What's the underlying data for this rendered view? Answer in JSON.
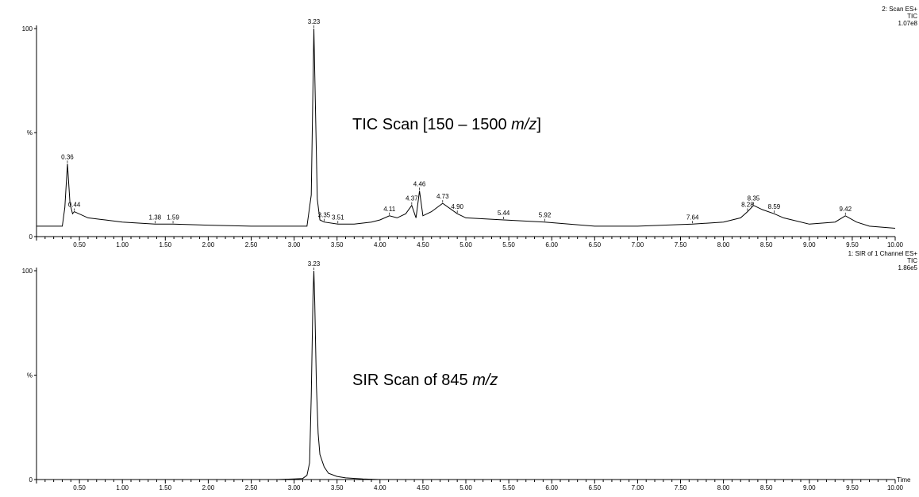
{
  "chart_data": [
    {
      "type": "line",
      "info": [
        "2: Scan ES+",
        "TIC",
        "1.07e8"
      ],
      "annotation": {
        "prefix": "TIC Scan [150 – 1500 ",
        "italic": "m/z",
        "suffix": "]"
      },
      "xlim": [
        0.0,
        10.0
      ],
      "ylim": [
        0,
        100
      ],
      "y_ticks": [
        "0",
        "%",
        "100"
      ],
      "x_ticks": [
        "0.50",
        "1.00",
        "1.50",
        "2.00",
        "2.50",
        "3.00",
        "3.50",
        "4.00",
        "4.50",
        "5.00",
        "5.50",
        "6.00",
        "6.50",
        "7.00",
        "7.50",
        "8.00",
        "8.50",
        "9.00",
        "9.50",
        "10.00"
      ],
      "series": [
        {
          "x": [
            0.0,
            0.3,
            0.33,
            0.36,
            0.39,
            0.42,
            0.44,
            0.6,
            0.8,
            1.0,
            1.38,
            1.59,
            2.0,
            2.5,
            3.0,
            3.15,
            3.2,
            3.23,
            3.27,
            3.3,
            3.35,
            3.51,
            3.7,
            3.9,
            4.0,
            4.11,
            4.2,
            4.3,
            4.37,
            4.42,
            4.46,
            4.5,
            4.6,
            4.73,
            4.9,
            5.0,
            5.44,
            5.92,
            6.5,
            7.0,
            7.64,
            8.0,
            8.2,
            8.28,
            8.35,
            8.45,
            8.59,
            8.7,
            9.0,
            9.3,
            9.42,
            9.55,
            9.7,
            10.0
          ],
          "y": [
            5,
            5,
            14,
            35,
            16,
            11,
            12,
            9,
            8,
            7,
            6,
            6,
            5.5,
            5,
            5,
            5,
            20,
            100,
            18,
            8,
            7,
            6,
            6,
            7,
            8,
            10,
            9,
            11,
            15,
            9,
            22,
            10,
            12,
            16,
            11,
            9,
            8,
            7,
            5,
            5,
            6,
            7,
            9,
            12,
            15,
            13,
            11,
            9,
            6,
            7,
            10,
            7,
            5,
            4
          ]
        }
      ],
      "peak_labels": [
        {
          "x": 0.36,
          "y": 35,
          "label": "0.36"
        },
        {
          "x": 0.44,
          "y": 12,
          "label": "0.44"
        },
        {
          "x": 1.38,
          "y": 6,
          "label": "1.38"
        },
        {
          "x": 1.59,
          "y": 6,
          "label": "1.59"
        },
        {
          "x": 3.23,
          "y": 100,
          "label": "3.23"
        },
        {
          "x": 3.35,
          "y": 7,
          "label": "3.35"
        },
        {
          "x": 3.51,
          "y": 6,
          "label": "3.51"
        },
        {
          "x": 4.11,
          "y": 10,
          "label": "4.11"
        },
        {
          "x": 4.37,
          "y": 15,
          "label": "4.37"
        },
        {
          "x": 4.46,
          "y": 22,
          "label": "4.46"
        },
        {
          "x": 4.73,
          "y": 16,
          "label": "4.73"
        },
        {
          "x": 4.9,
          "y": 11,
          "label": "4.90"
        },
        {
          "x": 5.44,
          "y": 8,
          "label": "5.44"
        },
        {
          "x": 5.92,
          "y": 7,
          "label": "5.92"
        },
        {
          "x": 7.64,
          "y": 6,
          "label": "7.64"
        },
        {
          "x": 8.28,
          "y": 12,
          "label": "8.28"
        },
        {
          "x": 8.35,
          "y": 15,
          "label": "8.35"
        },
        {
          "x": 8.59,
          "y": 11,
          "label": "8.59"
        },
        {
          "x": 9.42,
          "y": 10,
          "label": "9.42"
        }
      ]
    },
    {
      "type": "line",
      "info": [
        "1: SIR of 1 Channel ES+",
        "TIC",
        "1.86e5"
      ],
      "annotation": {
        "prefix": "SIR Scan of 845 ",
        "italic": "m/z",
        "suffix": ""
      },
      "xlim": [
        0.0,
        10.0
      ],
      "ylim": [
        0,
        100
      ],
      "y_ticks": [
        "0",
        "%",
        "100"
      ],
      "x_ticks": [
        "0.50",
        "1.00",
        "1.50",
        "2.00",
        "2.50",
        "3.00",
        "3.50",
        "4.00",
        "4.50",
        "5.00",
        "5.50",
        "6.00",
        "6.50",
        "7.00",
        "7.50",
        "8.00",
        "8.50",
        "9.00",
        "9.50",
        "10.00"
      ],
      "x_unit_label": "Time",
      "series": [
        {
          "x": [
            2.8,
            3.0,
            3.1,
            3.15,
            3.18,
            3.2,
            3.22,
            3.23,
            3.24,
            3.26,
            3.28,
            3.3,
            3.35,
            3.4,
            3.5,
            3.6,
            3.8,
            4.0
          ],
          "y": [
            0,
            0.3,
            0.5,
            2,
            8,
            40,
            88,
            100,
            85,
            45,
            22,
            12,
            6,
            3,
            1.5,
            0.8,
            0.3,
            0
          ]
        }
      ],
      "peak_labels": [
        {
          "x": 3.23,
          "y": 100,
          "label": "3.23"
        }
      ]
    }
  ]
}
